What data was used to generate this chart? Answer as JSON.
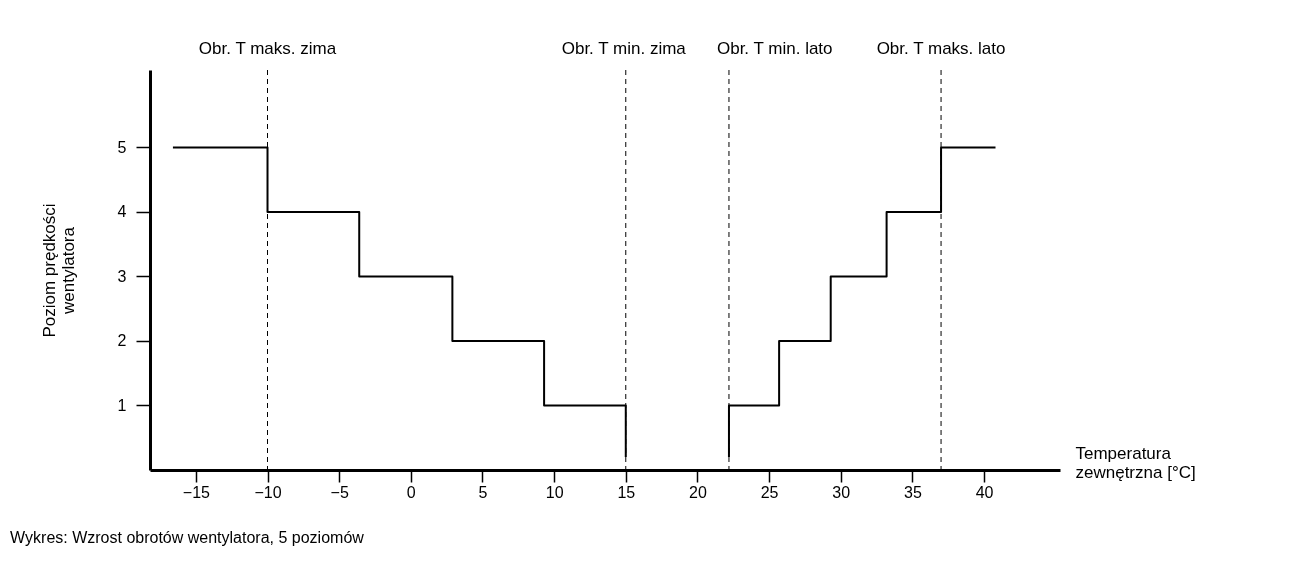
{
  "chart_data": {
    "type": "step",
    "xlabel": "Temperatura zewnętrzna [°C]",
    "ylabel": "Poziom prędkości wentylatora",
    "series": [
      {
        "color": "#000000",
        "x": [
          -16.6,
          -10,
          -3.6,
          2.9,
          9.3,
          15,
          15
        ],
        "values": [
          5,
          4,
          3,
          2,
          1,
          1,
          0.2
        ]
      },
      {
        "color": "#000000",
        "x": [
          22.2,
          22.2,
          25.7,
          29.3,
          33.2,
          37,
          40.8
        ],
        "values": [
          0.2,
          1,
          2,
          3,
          4,
          5,
          5
        ]
      }
    ],
    "xlim": [
      -18.2,
      45.3
    ],
    "xticks": [
      -15,
      -10,
      -5,
      0,
      5,
      10,
      15,
      20,
      25,
      30,
      35,
      40
    ],
    "ylim": [
      0,
      6.2
    ],
    "yticks": [
      1,
      2,
      3,
      4,
      5
    ],
    "ref_lines": [
      {
        "axis": "x",
        "value": -10,
        "label": "Obr. T maks. zima",
        "line_style": "dashed"
      },
      {
        "axis": "x",
        "value": 15,
        "label": "Obr. T min. zima",
        "line_style": "dashed"
      },
      {
        "axis": "x",
        "value": 22.2,
        "label": "Obr. T min. lato",
        "line_style": "dashed"
      },
      {
        "axis": "x",
        "value": 37,
        "label": "Obr. T maks. lato",
        "line_style": "dashed"
      }
    ],
    "annotations": [
      "Wykres: Wzrost obrotów wentylatora, 5 poziomów"
    ],
    "grid": false,
    "legend": false
  }
}
